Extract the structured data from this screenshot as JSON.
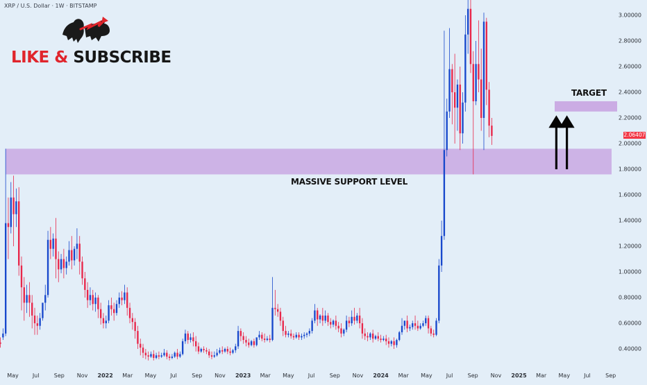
{
  "header": {
    "symbol_title": "XRP / U.S. Dollar · 1W · BITSTAMP"
  },
  "branding": {
    "like_text": "LIKE &",
    "subscribe_text": "SUBSCRIBE",
    "logo_icon": "bull-bear-icon"
  },
  "annotations": {
    "support_label": "MASSIVE SUPPORT LEVEL",
    "target_label": "TARGET",
    "arrow_icon": "up-arrow-icon"
  },
  "colors": {
    "background": "#e3eef8",
    "bull": "#1848cc",
    "bear": "#e8264a",
    "zone": "#c9a8e3",
    "price_flag": "#f23645"
  },
  "chart_data": {
    "type": "candlestick",
    "instrument": "XRP / U.S. Dollar",
    "interval": "1W",
    "exchange": "BITSTAMP",
    "y_axis": {
      "ticks": [
        0.4,
        0.6,
        0.8,
        1.0,
        1.2,
        1.4,
        1.6,
        1.8,
        2.0,
        2.2,
        2.4,
        2.6,
        2.8,
        3.0
      ],
      "tick_labels": [
        "0.40000",
        "0.60000",
        "0.80000",
        "1.00000",
        "1.20000",
        "1.40000",
        "1.60000",
        "1.80000",
        "2.00000",
        "2.20000",
        "2.40000",
        "2.60000",
        "2.80000",
        "3.00000"
      ],
      "range": [
        0.31,
        3.12
      ]
    },
    "x_axis": {
      "range": [
        "2021-03-28",
        "2025-09-20"
      ],
      "tick_labels": [
        {
          "label": "May",
          "date": "2021-05-01",
          "year": false
        },
        {
          "label": "Jul",
          "date": "2021-07-01",
          "year": false
        },
        {
          "label": "Sep",
          "date": "2021-09-01",
          "year": false
        },
        {
          "label": "Nov",
          "date": "2021-11-01",
          "year": false
        },
        {
          "label": "2022",
          "date": "2022-01-01",
          "year": true
        },
        {
          "label": "Mar",
          "date": "2022-03-01",
          "year": false
        },
        {
          "label": "May",
          "date": "2022-05-01",
          "year": false
        },
        {
          "label": "Jul",
          "date": "2022-07-01",
          "year": false
        },
        {
          "label": "Sep",
          "date": "2022-09-01",
          "year": false
        },
        {
          "label": "Nov",
          "date": "2022-11-01",
          "year": false
        },
        {
          "label": "2023",
          "date": "2023-01-01",
          "year": true
        },
        {
          "label": "Mar",
          "date": "2023-03-01",
          "year": false
        },
        {
          "label": "May",
          "date": "2023-05-01",
          "year": false
        },
        {
          "label": "Jul",
          "date": "2023-07-01",
          "year": false
        },
        {
          "label": "Sep",
          "date": "2023-09-01",
          "year": false
        },
        {
          "label": "Nov",
          "date": "2023-11-01",
          "year": false
        },
        {
          "label": "2024",
          "date": "2024-01-01",
          "year": true
        },
        {
          "label": "Mar",
          "date": "2024-03-01",
          "year": false
        },
        {
          "label": "May",
          "date": "2024-05-01",
          "year": false
        },
        {
          "label": "Jul",
          "date": "2024-07-01",
          "year": false
        },
        {
          "label": "Sep",
          "date": "2024-09-01",
          "year": false
        },
        {
          "label": "Nov",
          "date": "2024-11-01",
          "year": false
        },
        {
          "label": "2025",
          "date": "2025-01-01",
          "year": true
        },
        {
          "label": "Mar",
          "date": "2025-03-01",
          "year": false
        },
        {
          "label": "May",
          "date": "2025-05-01",
          "year": false
        },
        {
          "label": "Jul",
          "date": "2025-07-01",
          "year": false
        },
        {
          "label": "Sep",
          "date": "2025-09-01",
          "year": false
        }
      ]
    },
    "last_price": 2.06407,
    "last_price_label": "2.06407",
    "support_zone": {
      "low": 1.76,
      "high": 1.96
    },
    "target_zone": {
      "low": 2.25,
      "high": 2.33
    },
    "target_arrows": [
      {
        "date": "2025-04-10",
        "from": 1.8,
        "to": 2.22
      },
      {
        "date": "2025-05-08",
        "from": 1.8,
        "to": 2.22
      }
    ],
    "candle_dates": {
      "start": "2021-03-29",
      "step_days": 7
    },
    "candles": [
      [
        0.45,
        0.49,
        0.44,
        0.41
      ],
      [
        0.49,
        0.56,
        0.52,
        0.47
      ],
      [
        0.52,
        1.96,
        1.38,
        0.5
      ],
      [
        1.38,
        1.58,
        1.35,
        1.1
      ],
      [
        1.35,
        1.7,
        1.58,
        1.3
      ],
      [
        1.58,
        1.75,
        1.45,
        1.2
      ],
      [
        1.45,
        1.65,
        1.55,
        1.35
      ],
      [
        1.55,
        1.66,
        1.05,
        0.97
      ],
      [
        1.05,
        1.12,
        0.88,
        0.7
      ],
      [
        0.88,
        0.96,
        0.76,
        0.62
      ],
      [
        0.76,
        0.9,
        0.82,
        0.68
      ],
      [
        0.82,
        0.92,
        0.76,
        0.65
      ],
      [
        0.76,
        0.82,
        0.66,
        0.56
      ],
      [
        0.66,
        0.72,
        0.6,
        0.51
      ],
      [
        0.6,
        0.66,
        0.58,
        0.51
      ],
      [
        0.58,
        0.68,
        0.64,
        0.55
      ],
      [
        0.64,
        0.72,
        0.76,
        0.62
      ],
      [
        0.76,
        0.9,
        0.82,
        0.7
      ],
      [
        0.82,
        1.32,
        1.25,
        0.8
      ],
      [
        1.25,
        1.35,
        1.18,
        1.1
      ],
      [
        1.18,
        1.3,
        1.26,
        1.12
      ],
      [
        1.26,
        1.42,
        1.1,
        0.95
      ],
      [
        1.1,
        1.16,
        1.02,
        0.92
      ],
      [
        1.02,
        1.14,
        1.1,
        0.99
      ],
      [
        1.1,
        1.18,
        1.03,
        0.95
      ],
      [
        1.03,
        1.12,
        1.08,
        0.98
      ],
      [
        1.08,
        1.24,
        1.17,
        1.05
      ],
      [
        1.17,
        1.28,
        1.09,
        1.02
      ],
      [
        1.09,
        1.2,
        1.18,
        1.05
      ],
      [
        1.18,
        1.34,
        1.22,
        1.1
      ],
      [
        1.22,
        1.28,
        1.08,
        0.98
      ],
      [
        1.08,
        1.12,
        0.95,
        0.9
      ],
      [
        0.95,
        1.0,
        0.86,
        0.8
      ],
      [
        0.86,
        0.92,
        0.78,
        0.72
      ],
      [
        0.78,
        0.88,
        0.82,
        0.74
      ],
      [
        0.82,
        0.86,
        0.75,
        0.7
      ],
      [
        0.75,
        0.84,
        0.8,
        0.69
      ],
      [
        0.8,
        0.82,
        0.71,
        0.64
      ],
      [
        0.71,
        0.76,
        0.64,
        0.59
      ],
      [
        0.64,
        0.68,
        0.6,
        0.56
      ],
      [
        0.6,
        0.66,
        0.62,
        0.56
      ],
      [
        0.62,
        0.78,
        0.74,
        0.6
      ],
      [
        0.74,
        0.8,
        0.71,
        0.66
      ],
      [
        0.71,
        0.76,
        0.68,
        0.62
      ],
      [
        0.68,
        0.78,
        0.75,
        0.66
      ],
      [
        0.75,
        0.84,
        0.8,
        0.72
      ],
      [
        0.8,
        0.85,
        0.78,
        0.74
      ],
      [
        0.78,
        0.9,
        0.84,
        0.75
      ],
      [
        0.84,
        0.88,
        0.72,
        0.66
      ],
      [
        0.72,
        0.76,
        0.64,
        0.6
      ],
      [
        0.64,
        0.68,
        0.61,
        0.55
      ],
      [
        0.61,
        0.64,
        0.54,
        0.48
      ],
      [
        0.54,
        0.58,
        0.44,
        0.4
      ],
      [
        0.44,
        0.48,
        0.41,
        0.35
      ],
      [
        0.41,
        0.44,
        0.37,
        0.33
      ],
      [
        0.37,
        0.4,
        0.35,
        0.32
      ],
      [
        0.35,
        0.38,
        0.34,
        0.31
      ],
      [
        0.34,
        0.38,
        0.36,
        0.33
      ],
      [
        0.36,
        0.39,
        0.33,
        0.31
      ],
      [
        0.33,
        0.37,
        0.35,
        0.32
      ],
      [
        0.35,
        0.38,
        0.34,
        0.32
      ],
      [
        0.34,
        0.37,
        0.35,
        0.33
      ],
      [
        0.35,
        0.4,
        0.37,
        0.34
      ],
      [
        0.37,
        0.39,
        0.34,
        0.32
      ],
      [
        0.34,
        0.36,
        0.33,
        0.31
      ],
      [
        0.33,
        0.36,
        0.34,
        0.32
      ],
      [
        0.34,
        0.38,
        0.37,
        0.33
      ],
      [
        0.37,
        0.4,
        0.34,
        0.32
      ],
      [
        0.34,
        0.38,
        0.36,
        0.33
      ],
      [
        0.36,
        0.48,
        0.46,
        0.35
      ],
      [
        0.46,
        0.55,
        0.52,
        0.44
      ],
      [
        0.52,
        0.54,
        0.47,
        0.44
      ],
      [
        0.47,
        0.52,
        0.49,
        0.45
      ],
      [
        0.49,
        0.53,
        0.46,
        0.42
      ],
      [
        0.46,
        0.5,
        0.42,
        0.38
      ],
      [
        0.42,
        0.45,
        0.38,
        0.36
      ],
      [
        0.38,
        0.41,
        0.4,
        0.37
      ],
      [
        0.4,
        0.42,
        0.39,
        0.37
      ],
      [
        0.39,
        0.41,
        0.38,
        0.36
      ],
      [
        0.38,
        0.4,
        0.35,
        0.33
      ],
      [
        0.35,
        0.38,
        0.34,
        0.32
      ],
      [
        0.34,
        0.38,
        0.35,
        0.33
      ],
      [
        0.35,
        0.4,
        0.37,
        0.34
      ],
      [
        0.37,
        0.41,
        0.39,
        0.36
      ],
      [
        0.39,
        0.42,
        0.38,
        0.36
      ],
      [
        0.38,
        0.41,
        0.4,
        0.37
      ],
      [
        0.4,
        0.42,
        0.38,
        0.36
      ],
      [
        0.38,
        0.41,
        0.37,
        0.35
      ],
      [
        0.37,
        0.4,
        0.39,
        0.36
      ],
      [
        0.39,
        0.44,
        0.42,
        0.37
      ],
      [
        0.42,
        0.58,
        0.54,
        0.4
      ],
      [
        0.54,
        0.56,
        0.5,
        0.46
      ],
      [
        0.5,
        0.53,
        0.47,
        0.44
      ],
      [
        0.47,
        0.5,
        0.45,
        0.42
      ],
      [
        0.45,
        0.48,
        0.43,
        0.41
      ],
      [
        0.43,
        0.47,
        0.46,
        0.42
      ],
      [
        0.46,
        0.48,
        0.43,
        0.41
      ],
      [
        0.43,
        0.47,
        0.49,
        0.42
      ],
      [
        0.49,
        0.54,
        0.51,
        0.47
      ],
      [
        0.51,
        0.53,
        0.48,
        0.46
      ],
      [
        0.48,
        0.52,
        0.47,
        0.45
      ],
      [
        0.47,
        0.5,
        0.48,
        0.46
      ],
      [
        0.48,
        0.51,
        0.47,
        0.45
      ],
      [
        0.47,
        0.96,
        0.72,
        0.46
      ],
      [
        0.72,
        0.86,
        0.71,
        0.66
      ],
      [
        0.71,
        0.75,
        0.69,
        0.65
      ],
      [
        0.69,
        0.72,
        0.62,
        0.58
      ],
      [
        0.62,
        0.65,
        0.54,
        0.5
      ],
      [
        0.54,
        0.58,
        0.51,
        0.49
      ],
      [
        0.51,
        0.54,
        0.52,
        0.49
      ],
      [
        0.52,
        0.55,
        0.5,
        0.48
      ],
      [
        0.5,
        0.52,
        0.49,
        0.47
      ],
      [
        0.49,
        0.53,
        0.51,
        0.48
      ],
      [
        0.51,
        0.53,
        0.49,
        0.47
      ],
      [
        0.49,
        0.52,
        0.5,
        0.47
      ],
      [
        0.5,
        0.53,
        0.51,
        0.48
      ],
      [
        0.51,
        0.53,
        0.52,
        0.49
      ],
      [
        0.52,
        0.56,
        0.54,
        0.5
      ],
      [
        0.54,
        0.64,
        0.62,
        0.52
      ],
      [
        0.62,
        0.75,
        0.7,
        0.6
      ],
      [
        0.7,
        0.72,
        0.63,
        0.58
      ],
      [
        0.63,
        0.67,
        0.66,
        0.6
      ],
      [
        0.66,
        0.72,
        0.62,
        0.58
      ],
      [
        0.62,
        0.7,
        0.66,
        0.6
      ],
      [
        0.66,
        0.68,
        0.61,
        0.58
      ],
      [
        0.61,
        0.64,
        0.59,
        0.56
      ],
      [
        0.59,
        0.63,
        0.62,
        0.57
      ],
      [
        0.62,
        0.66,
        0.58,
        0.55
      ],
      [
        0.58,
        0.61,
        0.56,
        0.53
      ],
      [
        0.56,
        0.6,
        0.52,
        0.49
      ],
      [
        0.52,
        0.56,
        0.55,
        0.5
      ],
      [
        0.55,
        0.66,
        0.62,
        0.53
      ],
      [
        0.62,
        0.65,
        0.6,
        0.57
      ],
      [
        0.6,
        0.7,
        0.65,
        0.58
      ],
      [
        0.65,
        0.72,
        0.62,
        0.59
      ],
      [
        0.62,
        0.68,
        0.66,
        0.6
      ],
      [
        0.66,
        0.72,
        0.6,
        0.56
      ],
      [
        0.6,
        0.64,
        0.52,
        0.48
      ],
      [
        0.52,
        0.56,
        0.5,
        0.47
      ],
      [
        0.5,
        0.53,
        0.49,
        0.46
      ],
      [
        0.49,
        0.53,
        0.52,
        0.47
      ],
      [
        0.52,
        0.55,
        0.48,
        0.45
      ],
      [
        0.48,
        0.51,
        0.5,
        0.47
      ],
      [
        0.5,
        0.53,
        0.48,
        0.46
      ],
      [
        0.48,
        0.51,
        0.47,
        0.45
      ],
      [
        0.47,
        0.5,
        0.48,
        0.46
      ],
      [
        0.48,
        0.51,
        0.46,
        0.43
      ],
      [
        0.46,
        0.49,
        0.44,
        0.41
      ],
      [
        0.44,
        0.47,
        0.46,
        0.42
      ],
      [
        0.46,
        0.49,
        0.43,
        0.4
      ],
      [
        0.43,
        0.48,
        0.47,
        0.41
      ],
      [
        0.47,
        0.54,
        0.53,
        0.46
      ],
      [
        0.53,
        0.64,
        0.58,
        0.51
      ],
      [
        0.58,
        0.62,
        0.62,
        0.55
      ],
      [
        0.62,
        0.66,
        0.56,
        0.53
      ],
      [
        0.56,
        0.59,
        0.57,
        0.54
      ],
      [
        0.57,
        0.62,
        0.6,
        0.55
      ],
      [
        0.6,
        0.66,
        0.58,
        0.55
      ],
      [
        0.58,
        0.62,
        0.56,
        0.54
      ],
      [
        0.56,
        0.6,
        0.58,
        0.55
      ],
      [
        0.58,
        0.62,
        0.6,
        0.57
      ],
      [
        0.6,
        0.66,
        0.64,
        0.58
      ],
      [
        0.64,
        0.66,
        0.56,
        0.52
      ],
      [
        0.56,
        0.58,
        0.52,
        0.5
      ],
      [
        0.52,
        0.55,
        0.51,
        0.49
      ],
      [
        0.51,
        0.64,
        0.62,
        0.5
      ],
      [
        0.62,
        1.1,
        1.05,
        0.6
      ],
      [
        1.05,
        1.4,
        1.28,
        1.0
      ],
      [
        1.28,
        2.88,
        1.95,
        1.25
      ],
      [
        1.95,
        2.35,
        2.25,
        1.9
      ],
      [
        2.25,
        2.9,
        2.58,
        2.2
      ],
      [
        2.58,
        2.62,
        2.4,
        2.15
      ],
      [
        2.4,
        2.7,
        2.28,
        2.0
      ],
      [
        2.28,
        2.5,
        2.46,
        2.1
      ],
      [
        2.46,
        2.6,
        2.08,
        1.95
      ],
      [
        2.08,
        2.4,
        2.32,
        2.0
      ],
      [
        2.32,
        3.0,
        2.85,
        2.25
      ],
      [
        2.85,
        3.25,
        3.05,
        2.7
      ],
      [
        3.05,
        3.3,
        2.62,
        2.55
      ],
      [
        2.62,
        2.72,
        2.33,
        1.76
      ],
      [
        2.33,
        2.8,
        2.62,
        2.3
      ],
      [
        2.62,
        2.96,
        2.5,
        2.4
      ],
      [
        2.5,
        2.74,
        2.2,
        2.1
      ],
      [
        2.2,
        3.02,
        2.95,
        1.95
      ],
      [
        2.95,
        2.98,
        2.42,
        2.3
      ],
      [
        2.42,
        2.48,
        2.14,
        2.05
      ],
      [
        2.14,
        2.2,
        2.06,
        1.99
      ]
    ]
  }
}
